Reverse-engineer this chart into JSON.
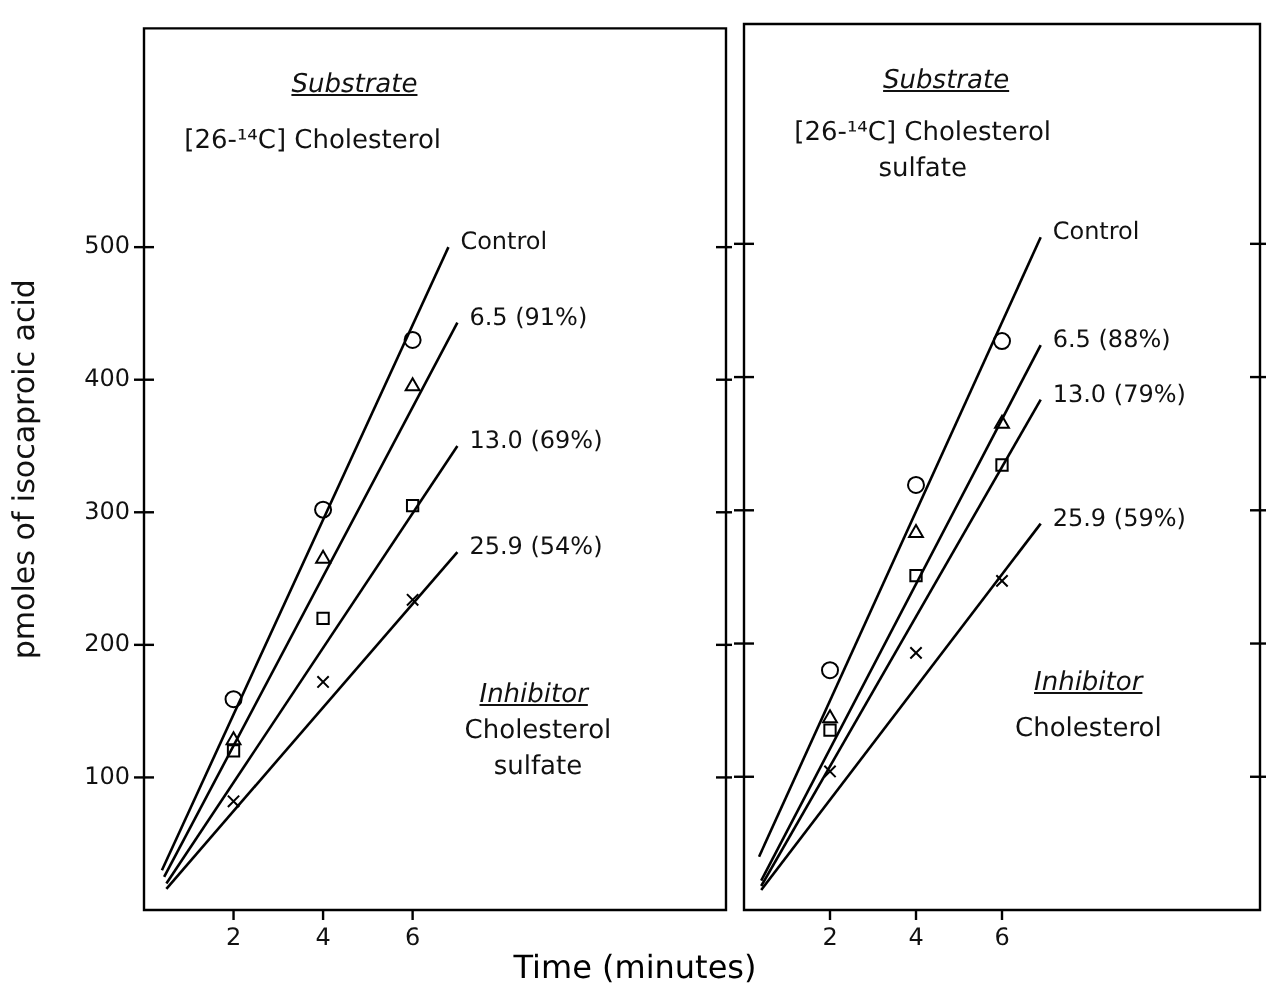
{
  "chart_data": [
    {
      "type": "line",
      "ylabel": "pmoles of isocaproic acid",
      "xlabel": "Time (minutes)",
      "xlim": [
        0,
        13
      ],
      "xticks": [
        2,
        4,
        6
      ],
      "ylim": [
        0,
        665
      ],
      "yticks": [
        100,
        200,
        300,
        400,
        500
      ],
      "grid": false,
      "legend": false,
      "annotations": [
        "Substrate",
        "[26-¹⁴C] Cholesterol",
        "Inhibitor",
        "Cholesterol sulfate"
      ],
      "series": [
        {
          "type": "scatter",
          "marker": "circle",
          "color": "#000000",
          "x": [
            2,
            4,
            6
          ],
          "values": [
            159,
            302,
            430
          ]
        },
        {
          "type": "scatter",
          "marker": "triangle",
          "color": "#000000",
          "x": [
            2,
            4,
            6
          ],
          "values": [
            128,
            265,
            395
          ]
        },
        {
          "type": "scatter",
          "marker": "square",
          "color": "#000000",
          "x": [
            2,
            4,
            6
          ],
          "values": [
            120,
            220,
            305
          ]
        },
        {
          "type": "scatter",
          "marker": "cross",
          "color": "#000000",
          "x": [
            2,
            4,
            6
          ],
          "values": [
            82,
            172,
            234
          ]
        },
        {
          "type": "line",
          "name": "Control",
          "color": "#000000",
          "x": [
            0.4,
            6.8
          ],
          "values": [
            30,
            500
          ]
        },
        {
          "type": "line",
          "name": "6.5 (91%)",
          "color": "#000000",
          "x": [
            0.45,
            7.0
          ],
          "values": [
            25,
            443
          ]
        },
        {
          "type": "line",
          "name": "13.0 (69%)",
          "color": "#000000",
          "x": [
            0.5,
            7.0
          ],
          "values": [
            20,
            350
          ]
        },
        {
          "type": "line",
          "name": "25.9 (54%)",
          "color": "#000000",
          "x": [
            0.5,
            7.0
          ],
          "values": [
            16,
            270
          ]
        }
      ]
    },
    {
      "type": "line",
      "xlim": [
        0,
        12
      ],
      "xticks": [
        2,
        4,
        6
      ],
      "ylim": [
        0,
        665
      ],
      "yticks": [
        100,
        200,
        300,
        400,
        500
      ],
      "tick_labels": "x",
      "grid": false,
      "legend": false,
      "annotations": [
        "Substrate",
        "[26-¹⁴C] Cholesterol sulfate",
        "Inhibitor",
        "Cholesterol"
      ],
      "series": [
        {
          "type": "scatter",
          "marker": "circle",
          "color": "#000000",
          "x": [
            2,
            4,
            6
          ],
          "values": [
            180,
            319,
            427
          ]
        },
        {
          "type": "scatter",
          "marker": "triangle",
          "color": "#000000",
          "x": [
            2,
            4,
            6
          ],
          "values": [
            144,
            283,
            365
          ]
        },
        {
          "type": "scatter",
          "marker": "square",
          "color": "#000000",
          "x": [
            2,
            4,
            6
          ],
          "values": [
            135,
            251,
            334
          ]
        },
        {
          "type": "scatter",
          "marker": "cross",
          "color": "#000000",
          "x": [
            2,
            4,
            6
          ],
          "values": [
            104,
            193,
            247
          ]
        },
        {
          "type": "line",
          "name": "Control",
          "color": "#000000",
          "x": [
            0.35,
            6.9
          ],
          "values": [
            40,
            505
          ]
        },
        {
          "type": "line",
          "name": "6.5 (88%)",
          "color": "#000000",
          "x": [
            0.4,
            6.9
          ],
          "values": [
            22,
            424
          ]
        },
        {
          "type": "line",
          "name": "13.0 (79%)",
          "color": "#000000",
          "x": [
            0.4,
            6.9
          ],
          "values": [
            18,
            383
          ]
        },
        {
          "type": "line",
          "name": "25.9 (59%)",
          "color": "#000000",
          "x": [
            0.4,
            6.9
          ],
          "values": [
            15,
            290
          ]
        }
      ]
    }
  ]
}
